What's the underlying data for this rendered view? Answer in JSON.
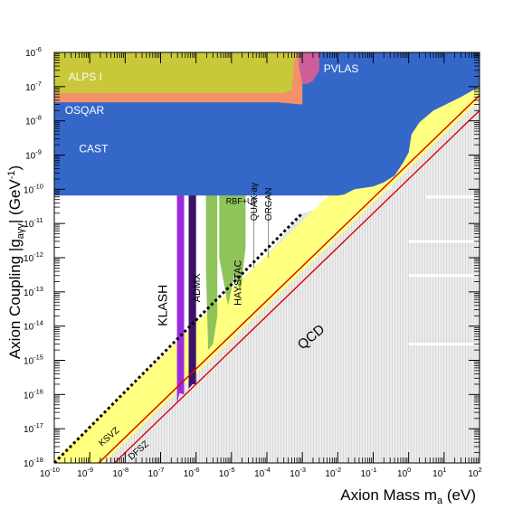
{
  "chart_data": {
    "type": "area",
    "title": "",
    "xlabel": "Axion Mass m",
    "xlabel_sub": "a",
    "xlabel_unit": " (eV)",
    "ylabel": "Axion Coupling |g",
    "ylabel_sub": "aγγ",
    "ylabel_mid": "| (GeV",
    "ylabel_sup": "-1",
    "ylabel_end": ")",
    "x_scale": "log",
    "y_scale": "log",
    "xlim": [
      1e-10,
      100
    ],
    "ylim": [
      1e-18,
      1e-06
    ],
    "grid": false,
    "x_tick_exponents": [
      -10,
      -9,
      -8,
      -7,
      -6,
      -5,
      -4,
      -3,
      -2,
      -1,
      0,
      1,
      2
    ],
    "y_tick_exponents": [
      -18,
      -17,
      -16,
      -15,
      -14,
      -13,
      -12,
      -11,
      -10,
      -9,
      -8,
      -7,
      -6
    ],
    "tick_base": "10",
    "regions": [
      {
        "name": "ALPS I",
        "color": "#c8c83a",
        "label_at": [
          2.5e-10,
          1.5e-07
        ]
      },
      {
        "name": "PVLAS",
        "color": "#cc5f9a",
        "label_at": [
          0.004,
          2.6e-07
        ]
      },
      {
        "name": "OSQAR",
        "color": "#f4916a",
        "label_at": [
          2e-10,
          1.6e-08
        ]
      },
      {
        "name": "CAST",
        "color": "#3567c9",
        "label_at": [
          5e-10,
          1.2e-09
        ]
      },
      {
        "name": "KLASH",
        "color": "#9b2be0",
        "label_at": [
          1.5e-07,
          1e-14
        ],
        "rotation": -90
      },
      {
        "name": "ADMX",
        "color": "#3b1268",
        "label_at": [
          1.3e-06,
          5e-14
        ],
        "rotation": -90
      },
      {
        "name": "RBF+UF",
        "color": "#8ec45a",
        "label_at": [
          7e-06,
          3.7e-11
        ]
      },
      {
        "name": "HAYSTAC",
        "color": "#8ec45a",
        "label_at": [
          1.85e-05,
          4e-14
        ],
        "rotation": -90
      },
      {
        "name": "QUAX-aγ",
        "color": "#888888",
        "label_at": [
          5.2e-05,
          1.2e-11
        ],
        "rotation": -90
      },
      {
        "name": "ORGAN",
        "color": "#888888",
        "label_at": [
          0.000135,
          1.2e-11
        ],
        "rotation": -90
      },
      {
        "name": "QCD",
        "color": "#ffff80",
        "label_at": [
          0.001,
          2e-15
        ],
        "rotation": -40
      },
      {
        "name": "KSVZ",
        "color": "#dd0000",
        "label_at": [
          2.2e-09,
          3e-18
        ],
        "rotation": -41
      },
      {
        "name": "DFSZ",
        "color": "#dd0000",
        "label_at": [
          1.5e-08,
          1.2e-18
        ],
        "rotation": -41
      }
    ],
    "qcd_band": {
      "x": [
        1e-10,
        100
      ],
      "y_low": [
        4e-20,
        4e-08
      ],
      "y_high": [
        1.2e-18,
        1.2e-06
      ]
    },
    "ksvz_line": {
      "x": [
        1e-10,
        100
      ],
      "y": [
        5.6e-20,
        5.6e-08
      ]
    },
    "dfsz_line": {
      "x": [
        1e-10,
        100
      ],
      "y": [
        2e-20,
        2e-08
      ]
    },
    "dotted_line": {
      "x": [
        1e-10,
        0.001
      ],
      "y": [
        1e-18,
        2e-11
      ]
    }
  }
}
